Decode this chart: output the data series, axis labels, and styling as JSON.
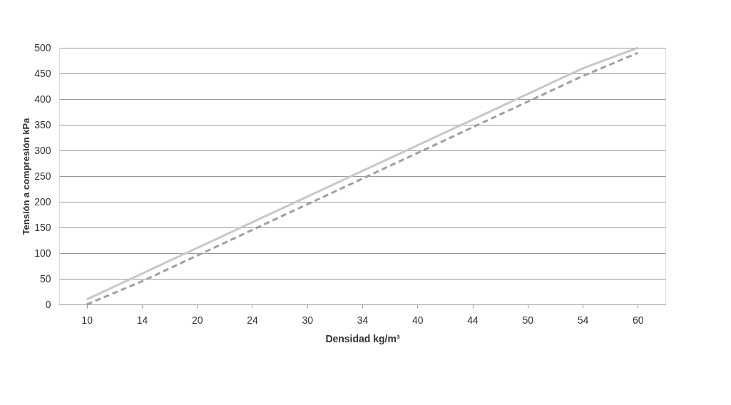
{
  "chart_data": {
    "type": "line",
    "xlabel": "Densidad kg/m³",
    "ylabel": "Tensión a compresión kPa",
    "categories": [
      "10",
      "14",
      "20",
      "24",
      "30",
      "34",
      "40",
      "44",
      "50",
      "54",
      "60"
    ],
    "series": [
      {
        "color": "#c8c8c8",
        "line_style": "solid",
        "values": [
          10,
          60,
          110,
          160,
          210,
          260,
          310,
          360,
          410,
          460,
          500
        ]
      },
      {
        "color": "#a0a0a0",
        "line_style": "dashed",
        "values": [
          0,
          45,
          95,
          145,
          195,
          245,
          295,
          345,
          395,
          445,
          490
        ]
      }
    ],
    "ylim": [
      0,
      500
    ],
    "yticks": [
      0,
      50,
      100,
      150,
      200,
      250,
      300,
      350,
      400,
      450,
      500
    ],
    "grid": "y",
    "legend": false,
    "marker": "none"
  }
}
